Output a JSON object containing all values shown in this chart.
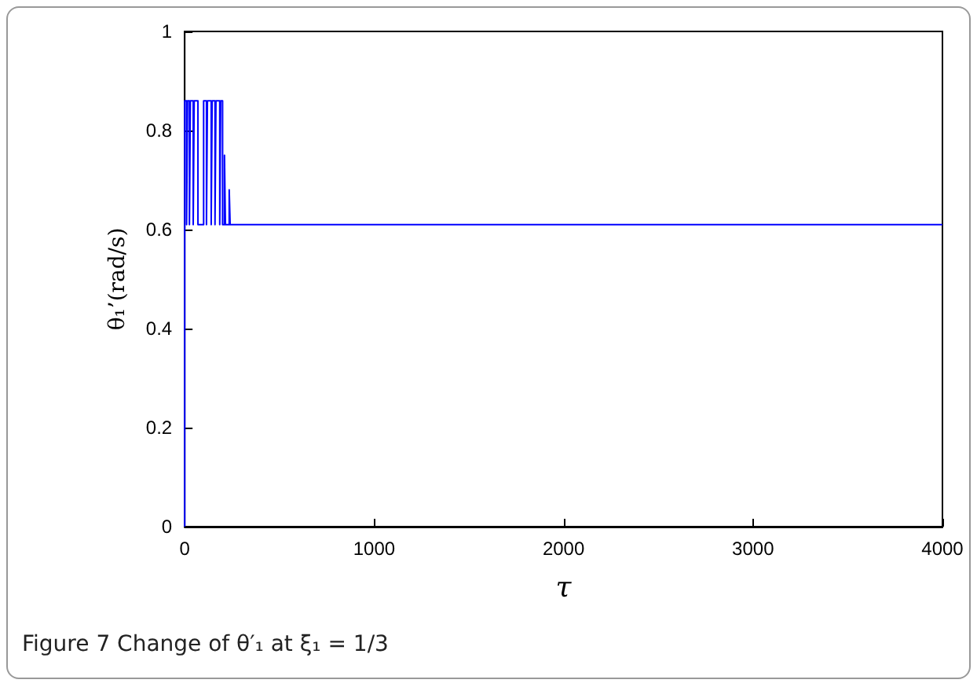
{
  "chart_data": {
    "type": "line",
    "xlabel": "τ",
    "ylabel": "θ₁’(rad/s)",
    "annotations": [
      "Figure 7  Change of θ′₁ at ξ₁ = 1/3"
    ],
    "series": [
      {
        "color": "#0000ff",
        "x": [
          0,
          0,
          10,
          10,
          15,
          15,
          25,
          25,
          30,
          30,
          45,
          45,
          50,
          50,
          70,
          70,
          100,
          100,
          115,
          115,
          120,
          120,
          140,
          140,
          145,
          145,
          160,
          160,
          165,
          165,
          185,
          185,
          190,
          190,
          200,
          200,
          210,
          210,
          215,
          235,
          235,
          240,
          4000
        ],
        "values": [
          0,
          0.86,
          0.86,
          0.61,
          0.61,
          0.86,
          0.86,
          0.61,
          0.61,
          0.86,
          0.86,
          0.61,
          0.61,
          0.86,
          0.86,
          0.61,
          0.61,
          0.86,
          0.86,
          0.61,
          0.61,
          0.86,
          0.86,
          0.61,
          0.61,
          0.86,
          0.86,
          0.61,
          0.61,
          0.86,
          0.86,
          0.61,
          0.61,
          0.86,
          0.86,
          0.61,
          0.61,
          0.75,
          0.61,
          0.61,
          0.68,
          0.61,
          0.61
        ]
      }
    ],
    "xlim": [
      0,
      4000
    ],
    "xticks": [
      0,
      1000,
      2000,
      3000,
      4000
    ],
    "ylim": [
      0,
      1
    ],
    "yticks": [
      0,
      0.2,
      0.4,
      0.6,
      0.8,
      1
    ],
    "grid": false,
    "marker": "none",
    "line_style": "solid"
  }
}
